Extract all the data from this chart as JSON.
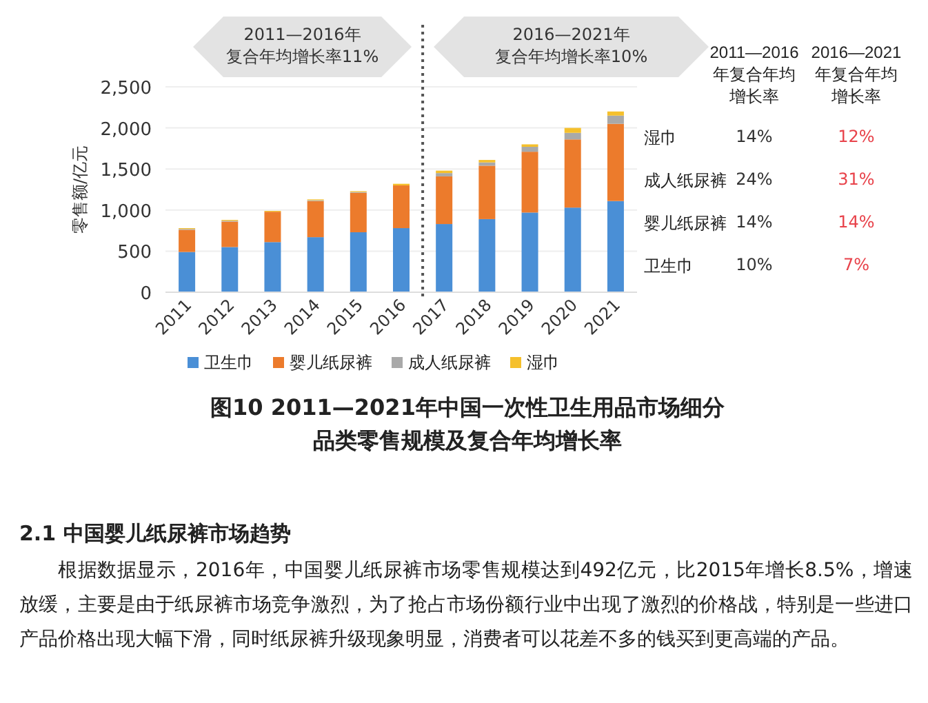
{
  "chart_data": [
    {
      "type": "bar",
      "title": "图10  2011—2021年中国一次性卫生用品市场细分品类零售规模及复合年均增长率",
      "ylabel": "零售额/亿元",
      "x": [
        2011,
        2012,
        2013,
        2014,
        2015,
        2016,
        2017,
        2018,
        2019,
        2020,
        2021
      ],
      "xlim": [
        2010.5,
        2021.5
      ],
      "xticks": [
        2011,
        2012,
        2013,
        2014,
        2015,
        2016,
        2017,
        2018,
        2019,
        2020,
        2021
      ],
      "ylim": [
        0,
        2500
      ],
      "yticks": [
        0,
        {
          "value": 500,
          "label": "500"
        },
        {
          "value": 1000,
          "label": "1,000"
        },
        {
          "value": 1500,
          "label": "1,500"
        },
        {
          "value": 2000,
          "label": "2,000"
        },
        {
          "value": 2500,
          "label": "2,500"
        }
      ],
      "stacked": true,
      "grid": "y",
      "legend": "bottom",
      "series": [
        {
          "name": "卫生巾",
          "color": "#4a8fd6",
          "values": [
            490,
            550,
            610,
            670,
            730,
            780,
            830,
            890,
            970,
            1030,
            1110
          ]
        },
        {
          "name": "婴儿纸尿裤",
          "color": "#ec7b2c",
          "values": [
            270,
            310,
            370,
            440,
            480,
            520,
            580,
            650,
            740,
            830,
            940
          ]
        },
        {
          "name": "成人纸尿裤",
          "color": "#a9a9a9",
          "values": [
            10,
            10,
            null,
            10,
            10,
            null,
            40,
            40,
            60,
            80,
            100
          ]
        },
        {
          "name": "湿巾",
          "color": "#f5c02c",
          "values": [
            10,
            10,
            10,
            10,
            10,
            20,
            30,
            30,
            30,
            60,
            50
          ]
        }
      ],
      "ref_lines": [
        {
          "axis": "x",
          "value": 2016.5,
          "line_style": "dotted",
          "color": "#555555"
        }
      ],
      "annotations": [
        "2011—2016年复合年均增长率11%",
        "2016—2021年复合年均增长率10%",
        "2.1 中国婴儿纸尿裤市场趋势",
        "根据数据显示，2016年，中国婴儿纸尿裤市场零售规模达到492亿元，比2015年增长8.5%，增速放缓，主要是由于纸尿裤市场竞争激烈，为了抢占市场份额行业中出现了激烈的价格战，特别是一些进口产品价格出现大幅下滑，同时纸尿裤升级现象明显，消费者可以花差不多的钱买到更高端的产品。"
      ]
    },
    {
      "type": "other",
      "annotations": [
        "2011—2016年复合年均增长率",
        "2016—2021年复合年均增长率",
        "湿巾",
        "14%",
        "12%",
        "成人纸尿裤",
        "24%",
        "31%",
        "婴儿纸尿裤",
        "14%",
        "14%",
        "卫生巾",
        "10%",
        "7%"
      ]
    }
  ]
}
